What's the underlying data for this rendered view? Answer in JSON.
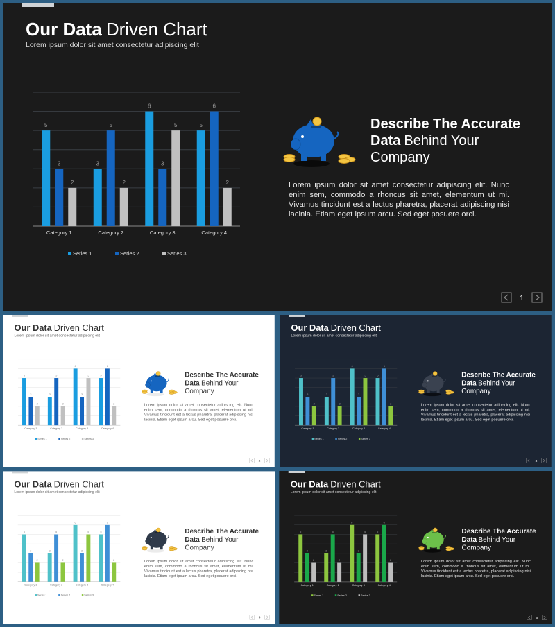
{
  "chart_data": [
    {
      "type": "bar",
      "categories": [
        "Category 1",
        "Category 2",
        "Category 3",
        "Category 4"
      ],
      "series": [
        {
          "name": "Series 1",
          "color": "#1a9de0",
          "values": [
            5,
            3,
            6,
            5
          ]
        },
        {
          "name": "Series 2",
          "color": "#1565c0",
          "values": [
            3,
            5,
            3,
            6
          ]
        },
        {
          "name": "Series 3",
          "color": "#c0c0c0",
          "values": [
            2,
            2,
            5,
            2
          ]
        }
      ],
      "ylim": [
        0,
        7
      ],
      "yticks": [
        0,
        1,
        2,
        3,
        4,
        5,
        6,
        7
      ],
      "grid": true,
      "legend": "bottom"
    },
    {
      "type": "bar",
      "categories": [
        "Category 1",
        "Category 2",
        "Category 3",
        "Category 4"
      ],
      "series": [
        {
          "name": "Series 1",
          "color": "#1a9de0",
          "values": [
            5,
            3,
            6,
            5
          ]
        },
        {
          "name": "Series 2",
          "color": "#1565c0",
          "values": [
            3,
            5,
            3,
            6
          ]
        },
        {
          "name": "Series 3",
          "color": "#c0c0c0",
          "values": [
            2,
            2,
            5,
            2
          ]
        }
      ],
      "ylim": [
        0,
        7
      ],
      "yticks": [
        0,
        1,
        2,
        3,
        4,
        5,
        6,
        7
      ],
      "grid": true,
      "legend": "bottom"
    },
    {
      "type": "bar",
      "categories": [
        "Category 1",
        "Category 2",
        "Category 3",
        "Category 4"
      ],
      "series": [
        {
          "name": "Series 1",
          "color": "#4fc1c9",
          "values": [
            5,
            3,
            6,
            5
          ]
        },
        {
          "name": "Series 2",
          "color": "#3f8fd6",
          "values": [
            3,
            5,
            3,
            6
          ]
        },
        {
          "name": "Series 3",
          "color": "#8dc63f",
          "values": [
            2,
            2,
            5,
            2
          ]
        }
      ],
      "ylim": [
        0,
        7
      ],
      "yticks": [
        0,
        1,
        2,
        3,
        4,
        5,
        6,
        7
      ],
      "grid": true,
      "legend": "bottom"
    },
    {
      "type": "bar",
      "categories": [
        "Category 1",
        "Category 2",
        "Category 3",
        "Category 4"
      ],
      "series": [
        {
          "name": "Series 1",
          "color": "#4fc1c9",
          "values": [
            5,
            3,
            6,
            5
          ]
        },
        {
          "name": "Series 2",
          "color": "#3f8fd6",
          "values": [
            3,
            5,
            3,
            6
          ]
        },
        {
          "name": "Series 3",
          "color": "#8dc63f",
          "values": [
            2,
            2,
            5,
            2
          ]
        }
      ],
      "ylim": [
        0,
        7
      ],
      "yticks": [
        0,
        1,
        2,
        3,
        4,
        5,
        6,
        7
      ],
      "grid": true,
      "legend": "bottom"
    },
    {
      "type": "bar",
      "categories": [
        "Category 1",
        "Category 2",
        "Category 3",
        "Category 4"
      ],
      "series": [
        {
          "name": "Series 1",
          "color": "#8dc63f",
          "values": [
            5,
            3,
            6,
            5
          ]
        },
        {
          "name": "Series 2",
          "color": "#1aa84a",
          "values": [
            3,
            5,
            3,
            6
          ]
        },
        {
          "name": "Series 3",
          "color": "#bdbdbd",
          "values": [
            2,
            2,
            5,
            2
          ]
        }
      ],
      "ylim": [
        0,
        7
      ],
      "yticks": [
        0,
        1,
        2,
        3,
        4,
        5,
        6,
        7
      ],
      "grid": true,
      "legend": "bottom"
    }
  ],
  "slides": [
    {
      "theme": "dark",
      "background": "#1b1b1b",
      "icon_color": "#1565c0",
      "title_bold": "Our Data",
      "title_rest": "Driven Chart",
      "subtitle": "Lorem ipsum dolor sit amet consectetur adipiscing elit",
      "heading_line1": "Describe The Accurate",
      "heading_bold": "Data",
      "heading_rest": "Behind Your",
      "heading_line3": "Company",
      "body": "Lorem ipsum dolor sit amet consectetur adipiscing elit. Nunc enim sem, commodo a rhoncus sit amet, elementum ut mi. Vivamus tincidunt est a lectus pharetra, placerat adipiscing nisi lacinia. Etiam eget ipsum arcu. Sed eget posuere orci.",
      "page": "1"
    },
    {
      "theme": "light",
      "background": "#ffffff",
      "icon_color": "#1565c0",
      "title_bold": "Our Data",
      "title_rest": "Driven Chart",
      "subtitle": "Lorem ipsum dolor sit amet consectetur adipiscing elit",
      "heading_line1": "Describe The Accurate",
      "heading_bold": "Data",
      "heading_rest": "Behind Your",
      "heading_line3": "Company",
      "body": "Lorem ipsum dolor sit amet consectetur adipiscing elit. Nunc enim sem, commodo a rhoncus sit amet, elementum ut mi. Vivamus tincidunt est a lectus pharetra, placerat adipiscing nisi lacinia. Etiam eget ipsum arcu. Sed eget posuere orci.",
      "page": "2"
    },
    {
      "theme": "dark",
      "background": "#1c2533",
      "icon_color": "#3a4250",
      "title_bold": "Our Data",
      "title_rest": "Driven Chart",
      "subtitle": "Lorem ipsum dolor sit amet consectetur adipiscing elit",
      "heading_line1": "Describe The Accurate",
      "heading_bold": "Data",
      "heading_rest": "Behind Your",
      "heading_line3": "Company",
      "body": "Lorem ipsum dolor sit amet consectetur adipiscing elit. Nunc enim sem, commodo a rhoncus sit amet, elementum ut mi. Vivamus tincidunt est a lectus pharetra, placerat adipiscing nisi lacinia. Etiam eget ipsum arcu. Sed eget posuere orci.",
      "page": "3"
    },
    {
      "theme": "light",
      "background": "#ffffff",
      "icon_color": "#2f3a4a",
      "title_bold": "Our Data",
      "title_rest": "Driven Chart",
      "subtitle": "Lorem ipsum dolor sit amet consectetur adipiscing elit",
      "heading_line1": "Describe The Accurate",
      "heading_bold": "Data",
      "heading_rest": "Behind Your",
      "heading_line3": "Company",
      "body": "Lorem ipsum dolor sit amet consectetur adipiscing elit. Nunc enim sem, commodo a rhoncus sit amet, elementum ut mi. Vivamus tincidunt est a lectus pharetra, placerat adipiscing nisi lacinia. Etiam eget ipsum arcu. Sed eget posuere orci.",
      "page": "4"
    },
    {
      "theme": "dark",
      "background": "#1b1b1b",
      "icon_color": "#6cc04a",
      "title_bold": "Our Data",
      "title_rest": "Driven Chart",
      "subtitle": "Lorem ipsum dolor sit amet consectetur adipiscing elit",
      "heading_line1": "Describe The Accurate",
      "heading_bold": "Data",
      "heading_rest": "Behind Your",
      "heading_line3": "Company",
      "body": "Lorem ipsum dolor sit amet consectetur adipiscing elit. Nunc enim sem, commodo a rhoncus sit amet, elementum ut mi. Vivamus tincidunt est a lectus pharetra, placerat adipiscing nisi lacinia. Etiam eget ipsum arcu. Sed eget posuere orci.",
      "page": "5"
    }
  ]
}
